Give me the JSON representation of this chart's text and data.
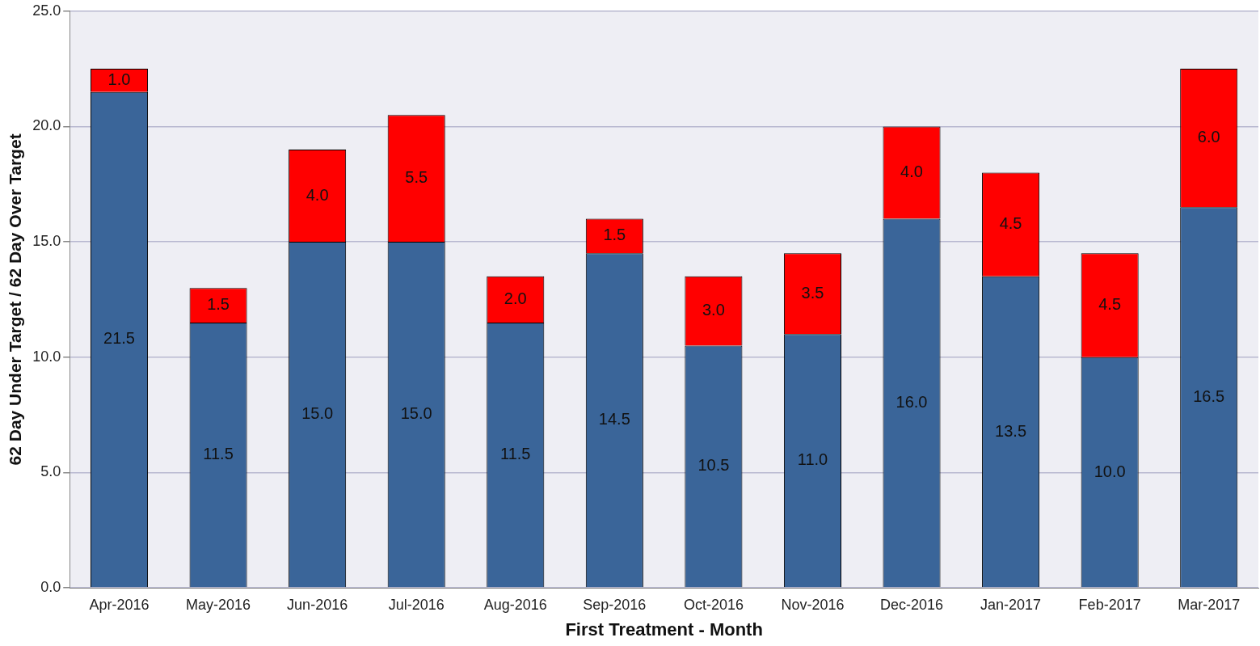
{
  "chart_data": {
    "type": "bar",
    "stacked": true,
    "xlabel": "First Treatment - Month",
    "ylabel": "62 Day Under Target / 62 Day Over Target",
    "categories": [
      "Apr-2016",
      "May-2016",
      "Jun-2016",
      "Jul-2016",
      "Aug-2016",
      "Sep-2016",
      "Oct-2016",
      "Nov-2016",
      "Dec-2016",
      "Jan-2017",
      "Feb-2017",
      "Mar-2017"
    ],
    "series": [
      {
        "color": "#3a6599",
        "values": [
          21.5,
          11.5,
          15.0,
          15.0,
          11.5,
          14.5,
          10.5,
          11.0,
          16.0,
          13.5,
          10.0,
          16.5
        ],
        "value_labels": [
          "21.5",
          "11.5",
          "15.0",
          "15.0",
          "11.5",
          "14.5",
          "10.5",
          "11.0",
          "16.0",
          "13.5",
          "10.0",
          "16.5"
        ]
      },
      {
        "color": "#ff0000",
        "values": [
          1.0,
          1.5,
          4.0,
          5.5,
          2.0,
          1.5,
          3.0,
          3.5,
          4.0,
          4.5,
          4.5,
          6.0
        ],
        "value_labels": [
          "1.0",
          "1.5",
          "4.0",
          "5.5",
          "2.0",
          "1.5",
          "3.0",
          "3.5",
          "4.0",
          "4.5",
          "4.5",
          "6.0"
        ]
      }
    ],
    "ylim": [
      0,
      25
    ],
    "yticks": [
      {
        "value": 0,
        "label": "0.0"
      },
      {
        "value": 5,
        "label": "5.0"
      },
      {
        "value": 10,
        "label": "10.0"
      },
      {
        "value": 15,
        "label": "15.0"
      },
      {
        "value": 20,
        "label": "20.0"
      },
      {
        "value": 25,
        "label": "25.0"
      }
    ],
    "grid": "y",
    "legend": false
  }
}
